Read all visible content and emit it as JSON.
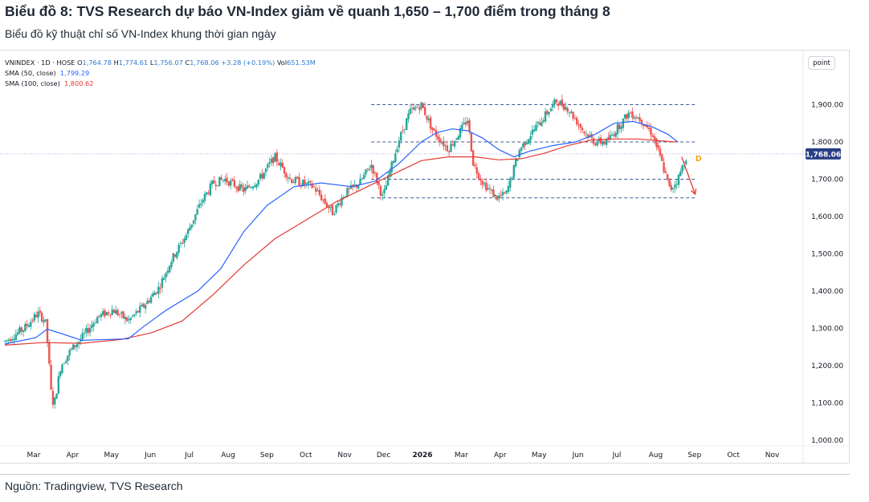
{
  "header": {
    "title": "Biểu đồ 8: TVS Research dự báo VN-Index giảm về quanh 1,650 – 1,700 điểm trong tháng 8",
    "subtitle": "Biểu đồ kỹ thuật chỉ số VN-Index khung thời gian ngày"
  },
  "legend": {
    "symbol": "VNINDEX · 1D · HOSE",
    "o_label": "O",
    "o_value": "1,764.78",
    "h_label": "H",
    "h_value": "1,774.61",
    "l_label": "L",
    "l_value": "1,756.07",
    "c_label": "C",
    "c_value": "1,768.06",
    "change": "+3.28 (+0.19%)",
    "vol_label": "Vol",
    "vol_value": "651.53M",
    "sma50_label": "SMA (50, close)",
    "sma50_value": "1,799.29",
    "sma100_label": "SMA (100, close)",
    "sma100_value": "1,800.62"
  },
  "scale_button": "point",
  "footer": {
    "source": "Nguồn: Tradingview, TVS Research"
  },
  "colors": {
    "up": "#26a69a",
    "down": "#ef5350",
    "sma50": "#2962ff",
    "sma100": "#e53935",
    "level_lines": "#3d5a98",
    "forecast": "#e53935",
    "price_tag": "#2a3f87",
    "marker": "#f7a11a"
  },
  "chart_data": {
    "type": "candlestick",
    "instrument": "VNINDEX",
    "timeframe": "1D",
    "y_axis": {
      "scale": "linear",
      "range": [
        980,
        1980
      ],
      "ticks": [
        "1,000.00",
        "1,100.00",
        "1,200.00",
        "1,300.00",
        "1,400.00",
        "1,500.00",
        "1,600.00",
        "1,700.00",
        "1,800.00",
        "1,900.00"
      ],
      "tick_values": [
        1000,
        1100,
        1200,
        1300,
        1400,
        1500,
        1600,
        1700,
        1800,
        1900
      ]
    },
    "x_axis": {
      "month_labels": [
        "Mar",
        "Apr",
        "May",
        "Jun",
        "Jul",
        "Aug",
        "Sep",
        "Oct",
        "Nov",
        "Dec",
        "2026",
        "Mar",
        "Apr",
        "May",
        "Jun",
        "Jul",
        "Aug",
        "Sep",
        "Oct",
        "Nov"
      ],
      "month_index": [
        0,
        1,
        2,
        3,
        4,
        5,
        6,
        7,
        8,
        9,
        10,
        12,
        13,
        14,
        15,
        16,
        17,
        18,
        19,
        20
      ],
      "months_span": [
        0,
        21
      ]
    },
    "last_price": {
      "label": "1,768.06",
      "value": 1768.06
    },
    "price_path": [
      [
        0.0,
        1265
      ],
      [
        0.5,
        1300
      ],
      [
        0.85,
        1340
      ],
      [
        1.05,
        1320
      ],
      [
        1.1,
        1270
      ],
      [
        1.2,
        1130
      ],
      [
        1.27,
        1090
      ],
      [
        1.45,
        1200
      ],
      [
        1.7,
        1240
      ],
      [
        2.0,
        1275
      ],
      [
        2.4,
        1330
      ],
      [
        2.8,
        1350
      ],
      [
        3.2,
        1320
      ],
      [
        3.6,
        1360
      ],
      [
        4.0,
        1410
      ],
      [
        4.3,
        1480
      ],
      [
        4.7,
        1550
      ],
      [
        5.1,
        1640
      ],
      [
        5.4,
        1690
      ],
      [
        5.7,
        1700
      ],
      [
        6.2,
        1670
      ],
      [
        6.6,
        1700
      ],
      [
        7.0,
        1760
      ],
      [
        7.4,
        1700
      ],
      [
        8.0,
        1680
      ],
      [
        8.5,
        1610
      ],
      [
        8.8,
        1660
      ],
      [
        9.2,
        1690
      ],
      [
        9.5,
        1740
      ],
      [
        9.8,
        1650
      ],
      [
        10.2,
        1800
      ],
      [
        10.5,
        1880
      ],
      [
        10.8,
        1900
      ],
      [
        11.1,
        1830
      ],
      [
        11.5,
        1780
      ],
      [
        12.0,
        1860
      ],
      [
        12.15,
        1740
      ],
      [
        12.4,
        1690
      ],
      [
        12.75,
        1650
      ],
      [
        13.0,
        1660
      ],
      [
        13.35,
        1780
      ],
      [
        13.7,
        1830
      ],
      [
        14.0,
        1870
      ],
      [
        14.3,
        1910
      ],
      [
        14.6,
        1890
      ],
      [
        15.0,
        1830
      ],
      [
        15.3,
        1800
      ],
      [
        15.6,
        1800
      ],
      [
        15.9,
        1840
      ],
      [
        16.2,
        1880
      ],
      [
        16.5,
        1860
      ],
      [
        16.8,
        1820
      ],
      [
        17.05,
        1740
      ],
      [
        17.25,
        1670
      ],
      [
        17.45,
        1700
      ],
      [
        17.7,
        1770
      ]
    ],
    "sma50": [
      [
        0.0,
        1258
      ],
      [
        0.8,
        1275
      ],
      [
        1.1,
        1298
      ],
      [
        1.5,
        1285
      ],
      [
        2.0,
        1268
      ],
      [
        3.2,
        1272
      ],
      [
        3.6,
        1305
      ],
      [
        4.2,
        1350
      ],
      [
        5.0,
        1400
      ],
      [
        5.6,
        1460
      ],
      [
        6.2,
        1560
      ],
      [
        6.8,
        1630
      ],
      [
        7.5,
        1680
      ],
      [
        8.2,
        1690
      ],
      [
        9.0,
        1680
      ],
      [
        9.6,
        1695
      ],
      [
        10.2,
        1740
      ],
      [
        10.8,
        1800
      ],
      [
        11.2,
        1825
      ],
      [
        11.6,
        1835
      ],
      [
        12.0,
        1830
      ],
      [
        12.4,
        1810
      ],
      [
        12.8,
        1780
      ],
      [
        13.2,
        1760
      ],
      [
        13.6,
        1775
      ],
      [
        14.2,
        1790
      ],
      [
        14.8,
        1800
      ],
      [
        15.3,
        1820
      ],
      [
        15.8,
        1850
      ],
      [
        16.3,
        1855
      ],
      [
        16.8,
        1840
      ],
      [
        17.2,
        1820
      ],
      [
        17.45,
        1800
      ]
    ],
    "sma100": [
      [
        0.0,
        1255
      ],
      [
        1.0,
        1262
      ],
      [
        2.0,
        1260
      ],
      [
        3.0,
        1270
      ],
      [
        3.8,
        1288
      ],
      [
        4.6,
        1320
      ],
      [
        5.4,
        1390
      ],
      [
        6.2,
        1470
      ],
      [
        7.0,
        1540
      ],
      [
        7.8,
        1590
      ],
      [
        8.6,
        1640
      ],
      [
        9.4,
        1680
      ],
      [
        10.2,
        1720
      ],
      [
        10.8,
        1750
      ],
      [
        11.5,
        1760
      ],
      [
        12.2,
        1760
      ],
      [
        12.8,
        1752
      ],
      [
        13.4,
        1755
      ],
      [
        14.0,
        1770
      ],
      [
        14.6,
        1790
      ],
      [
        15.2,
        1805
      ],
      [
        15.8,
        1808
      ],
      [
        16.4,
        1808
      ],
      [
        17.0,
        1803
      ],
      [
        17.4,
        1800
      ]
    ],
    "levels": [
      {
        "value": 1900,
        "from": 9.5,
        "to": 17.95
      },
      {
        "value": 1800,
        "from": 9.5,
        "to": 17.95
      },
      {
        "value": 1700,
        "from": 9.5,
        "to": 17.95
      },
      {
        "value": 1650,
        "from": 9.5,
        "to": 17.95
      }
    ],
    "forecast": {
      "from": [
        17.55,
        1760
      ],
      "to": [
        17.9,
        1660
      ]
    },
    "marker": {
      "label": "D",
      "x": 17.78,
      "y": 1755
    }
  }
}
